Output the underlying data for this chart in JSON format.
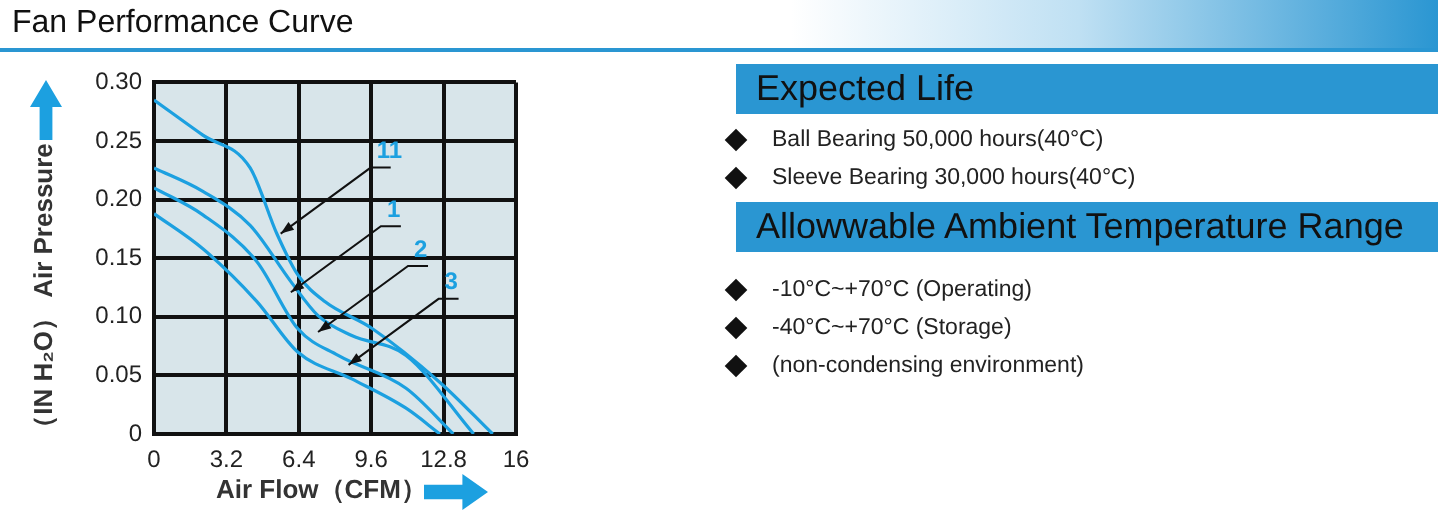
{
  "chart_data": {
    "type": "line",
    "title": "Fan Performance Curve",
    "xlabel": "Air Flow（CFM）",
    "ylabel": "（IN H₂O）  Air Pressure",
    "xlim": [
      0,
      16
    ],
    "xticks": [
      0,
      3.2,
      6.4,
      9.6,
      12.8,
      16
    ],
    "ylim": [
      0,
      0.3
    ],
    "yticks": [
      0,
      0.05,
      {
        "value": 0.1,
        "label": "0.10"
      },
      0.15,
      {
        "value": 0.2,
        "label": "0.20"
      },
      0.25,
      {
        "value": 0.3,
        "label": "0.30"
      }
    ],
    "grid": true,
    "legend": false,
    "marker": "none",
    "line_style": "solid",
    "series": [
      {
        "color": "#1ca0e0",
        "x": [
          0,
          2.16,
          4.25,
          5.45,
          6.35,
          7.55,
          9.64,
          12.64,
          14.97
        ],
        "values": [
          0.285,
          0.255,
          0.227,
          0.17,
          0.136,
          0.113,
          0.09,
          0.044,
          0
        ]
      },
      {
        "color": "#1ca0e0",
        "x": [
          0,
          2.16,
          4.25,
          6.05,
          7.25,
          8.74,
          11.14,
          14.13
        ],
        "values": [
          0.227,
          0.207,
          0.178,
          0.13,
          0.101,
          0.084,
          0.067,
          0
        ]
      },
      {
        "color": "#1ca0e0",
        "x": [
          0,
          2.16,
          4.55,
          6.35,
          8.14,
          11.14,
          13.23
        ],
        "values": [
          0.21,
          0.187,
          0.147,
          0.09,
          0.067,
          0.039,
          0
        ]
      },
      {
        "color": "#1ca0e0",
        "x": [
          0,
          2.16,
          4.55,
          6.35,
          8.74,
          11.14,
          12.64
        ],
        "values": [
          0.188,
          0.158,
          0.113,
          0.07,
          0.047,
          0.022,
          0
        ]
      }
    ],
    "annotations": [
      {
        "text": "11",
        "x": 5.6,
        "y": 0.171
      },
      {
        "text": "1",
        "x": 6.05,
        "y": 0.121
      },
      {
        "text": "2",
        "x": 7.25,
        "y": 0.087
      },
      {
        "text": "3",
        "x": 8.6,
        "y": 0.059
      },
      "Expected Life",
      "Ball Bearing 50,000 hours(40°C)",
      "Sleeve Bearing 30,000 hours(40°C)",
      "Allowwable Ambient Temperature Range",
      "-10°C~+70°C (Operating)",
      "-40°C~+70°C (Storage)",
      "(non-condensing environment)"
    ]
  }
}
